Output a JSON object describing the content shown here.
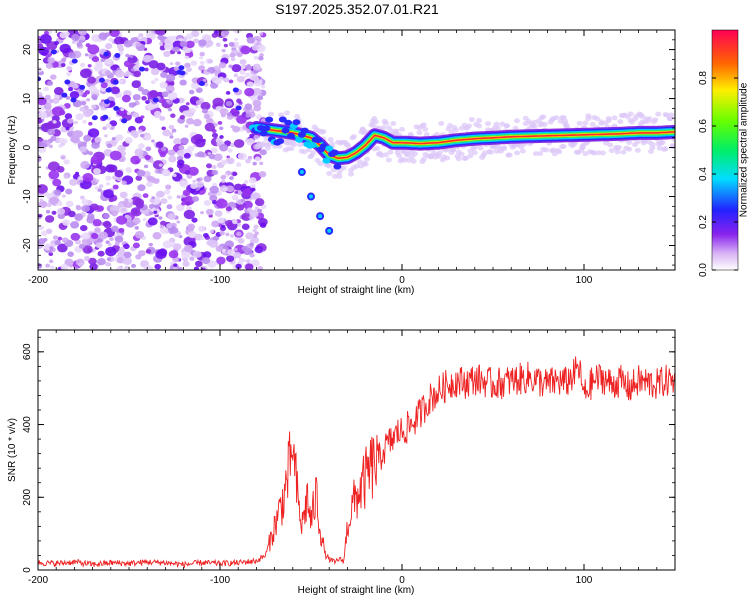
{
  "chart_data": [
    {
      "type": "heatmap",
      "title": "S197.2025.352.07.01.R21",
      "xlabel": "Height of straight line (km)",
      "ylabel": "Frequency (Hz)",
      "xlim": [
        -200,
        150
      ],
      "ylim": [
        -25,
        24
      ],
      "x_ticks": [
        -200,
        -100,
        0,
        100
      ],
      "x_tick_labels": [
        "-200",
        "-100",
        "0",
        "100"
      ],
      "y_ticks": [
        -20,
        -10,
        0,
        10,
        20
      ],
      "y_tick_labels": [
        "-20",
        "-10",
        "0",
        "10",
        "20"
      ],
      "colorbar": {
        "label": "Normalized spectral amplitude",
        "range": [
          0,
          1
        ],
        "ticks": [
          0,
          0.2,
          0.4,
          0.6,
          0.8
        ],
        "tick_labels": [
          "0.0",
          "0.2",
          "0.4",
          "0.6",
          "0.8"
        ]
      },
      "ridge_line": {
        "x": [
          -80,
          -70,
          -60,
          -50,
          -45,
          -40,
          -35,
          -30,
          -25,
          -20,
          -15,
          -10,
          -5,
          0,
          10,
          20,
          30,
          40,
          50,
          60,
          70,
          80,
          90,
          100,
          110,
          120,
          130,
          140,
          150
        ],
        "freq": [
          4,
          3.5,
          3,
          2,
          0.5,
          -1.5,
          -2.2,
          -2,
          -1,
          0.5,
          2.5,
          2,
          1,
          1,
          0.8,
          1,
          1.5,
          1.8,
          2,
          2.2,
          2.3,
          2.4,
          2.5,
          2.6,
          2.7,
          2.8,
          3,
          3,
          3.2
        ]
      },
      "secondary_branch": {
        "x": [
          -55,
          -50,
          -45,
          -40
        ],
        "freq": [
          -5,
          -10,
          -14,
          -17
        ]
      },
      "noise_region": [
        -200,
        -80
      ]
    },
    {
      "type": "line",
      "title": "",
      "xlabel": "Height of straight line (km)",
      "ylabel": "SNR (10 * v/v)",
      "xlim": [
        -200,
        150
      ],
      "ylim": [
        0,
        660
      ],
      "x_ticks": [
        -200,
        -100,
        0,
        100
      ],
      "x_tick_labels": [
        "-200",
        "-100",
        "0",
        "100"
      ],
      "y_ticks": [
        0,
        200,
        400,
        600
      ],
      "y_tick_labels": [
        "0",
        "200",
        "400",
        "600"
      ],
      "series": [
        {
          "name": "SNR",
          "color": "#ee2222",
          "x": [
            -200,
            -190,
            -180,
            -170,
            -160,
            -150,
            -140,
            -130,
            -120,
            -110,
            -100,
            -90,
            -80,
            -75,
            -70,
            -65,
            -60,
            -57,
            -55,
            -52,
            -50,
            -47,
            -45,
            -42,
            -40,
            -37,
            -35,
            -32,
            -30,
            -27,
            -25,
            -22,
            -20,
            -17,
            -15,
            -12,
            -10,
            -7,
            -5,
            -2,
            0,
            5,
            10,
            15,
            20,
            25,
            30,
            35,
            40,
            45,
            50,
            55,
            60,
            65,
            70,
            75,
            80,
            85,
            90,
            95,
            97,
            100,
            105,
            110,
            115,
            120,
            125,
            130,
            135,
            140,
            145,
            150
          ],
          "values": [
            20,
            18,
            22,
            15,
            20,
            18,
            22,
            20,
            15,
            20,
            18,
            20,
            25,
            40,
            120,
            200,
            330,
            180,
            120,
            200,
            130,
            210,
            110,
            40,
            30,
            20,
            30,
            25,
            120,
            180,
            200,
            230,
            250,
            280,
            290,
            310,
            330,
            350,
            360,
            380,
            380,
            400,
            430,
            470,
            490,
            510,
            520,
            515,
            525,
            520,
            510,
            515,
            520,
            525,
            530,
            520,
            510,
            520,
            515,
            540,
            560,
            480,
            520,
            530,
            510,
            520,
            500,
            520,
            515,
            510,
            520,
            520
          ]
        }
      ]
    }
  ]
}
